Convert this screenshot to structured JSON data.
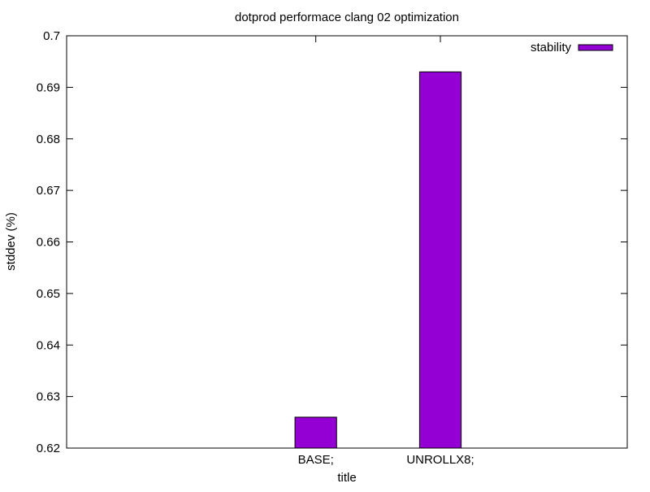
{
  "chart_data": {
    "type": "bar",
    "title": "dotprod performace clang 02 optimization",
    "xlabel": "title",
    "ylabel": "stddev (%)",
    "categories": [
      "BASE;",
      "UNROLLX8;"
    ],
    "series": [
      {
        "name": "stability",
        "values": [
          0.626,
          0.693
        ],
        "color": "#9400d3"
      }
    ],
    "ylim": [
      0.62,
      0.7
    ],
    "yticks": [
      "0.62",
      "0.63",
      "0.64",
      "0.65",
      "0.66",
      "0.67",
      "0.68",
      "0.69",
      "0.7"
    ],
    "grid": false,
    "legend": "top-right"
  }
}
